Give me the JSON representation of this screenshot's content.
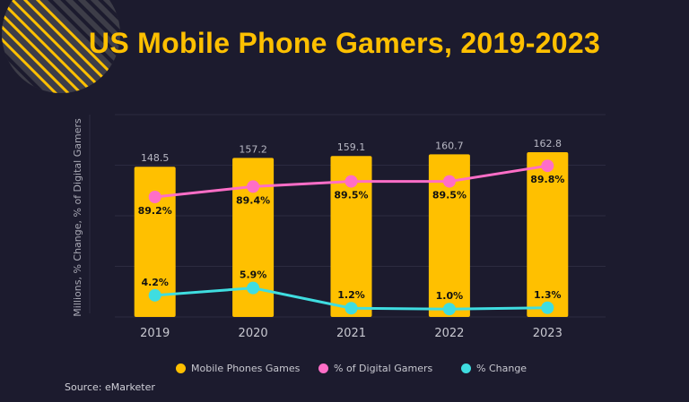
{
  "chart_data": {
    "type": "bar",
    "title": "US Mobile Phone Gamers, 2019-2023",
    "ylabel": "Millions, % Change, % of Digital Gamers",
    "xlabel": "",
    "categories": [
      "2019",
      "2020",
      "2021",
      "2022",
      "2023"
    ],
    "ylim": [
      0,
      200
    ],
    "grid": true,
    "series": [
      {
        "name": "Mobile Phones Games",
        "type": "bar",
        "color": "#ffc000",
        "values": [
          148.5,
          157.2,
          159.1,
          160.7,
          162.8
        ],
        "labels": [
          "148.5",
          "157.2",
          "159.1",
          "160.7",
          "162.8"
        ]
      },
      {
        "name": "% of Digital Gamers",
        "type": "line",
        "color": "#ff6ec7",
        "values": [
          89.2,
          89.4,
          89.5,
          89.5,
          89.8
        ],
        "labels": [
          "89.2%",
          "89.4%",
          "89.5%",
          "89.5%",
          "89.8%"
        ]
      },
      {
        "name": "% Change",
        "type": "line",
        "color": "#3fdde0",
        "values": [
          4.2,
          5.9,
          1.2,
          1.0,
          1.3
        ],
        "labels": [
          "4.2%",
          "5.9%",
          "1.2%",
          "1.0%",
          "1.3%"
        ]
      }
    ],
    "legend_position": "bottom"
  },
  "source": "Source: eMarketer"
}
